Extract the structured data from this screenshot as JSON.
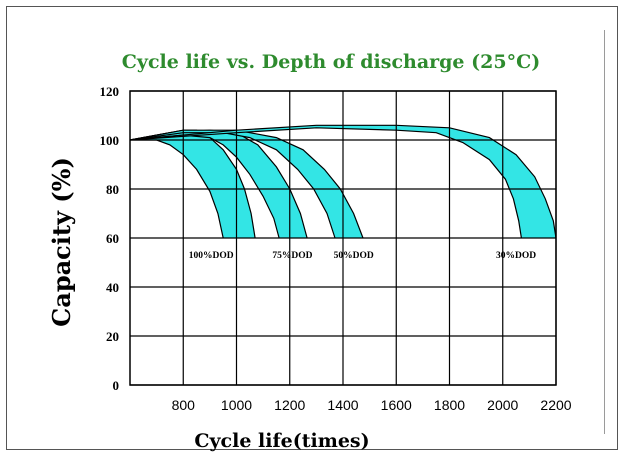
{
  "chart_data": {
    "type": "line",
    "title": "Cycle life vs. Depth of discharge (25°C)",
    "xlabel": "Cycle life(times)",
    "ylabel": "Capacity (%)",
    "xlim": [
      600,
      2200
    ],
    "ylim": [
      0,
      120
    ],
    "x_ticks": [
      800,
      1000,
      1200,
      1400,
      1600,
      1800,
      2000,
      2200
    ],
    "y_ticks": [
      0,
      20,
      40,
      60,
      80,
      100,
      120
    ],
    "grid": true,
    "band_color": "#33e5e5",
    "title_color": "#2e8b2e",
    "series": [
      {
        "name": "100%DOD",
        "upper": [
          [
            600,
            100
          ],
          [
            700,
            102
          ],
          [
            800,
            104
          ],
          [
            850,
            104
          ],
          [
            900,
            101
          ],
          [
            950,
            96
          ],
          [
            1000,
            88
          ],
          [
            1030,
            80
          ],
          [
            1055,
            70
          ],
          [
            1070,
            60
          ]
        ],
        "lower": [
          [
            600,
            100
          ],
          [
            700,
            100
          ],
          [
            750,
            98
          ],
          [
            800,
            94
          ],
          [
            850,
            88
          ],
          [
            900,
            79
          ],
          [
            930,
            70
          ],
          [
            950,
            60
          ]
        ]
      },
      {
        "name": "75%DOD",
        "upper": [
          [
            600,
            100
          ],
          [
            750,
            103
          ],
          [
            900,
            104
          ],
          [
            1000,
            103
          ],
          [
            1080,
            98
          ],
          [
            1150,
            89
          ],
          [
            1200,
            80
          ],
          [
            1240,
            70
          ],
          [
            1265,
            60
          ]
        ],
        "lower": [
          [
            600,
            100
          ],
          [
            800,
            102
          ],
          [
            900,
            101
          ],
          [
            950,
            98
          ],
          [
            1000,
            93
          ],
          [
            1050,
            86
          ],
          [
            1100,
            77
          ],
          [
            1140,
            68
          ],
          [
            1160,
            60
          ]
        ]
      },
      {
        "name": "50%DOD",
        "upper": [
          [
            600,
            100
          ],
          [
            800,
            104
          ],
          [
            1000,
            104
          ],
          [
            1150,
            101
          ],
          [
            1250,
            96
          ],
          [
            1330,
            88
          ],
          [
            1390,
            80
          ],
          [
            1440,
            70
          ],
          [
            1475,
            60
          ]
        ],
        "lower": [
          [
            600,
            100
          ],
          [
            800,
            103
          ],
          [
            950,
            103
          ],
          [
            1050,
            101
          ],
          [
            1150,
            96
          ],
          [
            1230,
            88
          ],
          [
            1290,
            80
          ],
          [
            1340,
            70
          ],
          [
            1370,
            60
          ]
        ]
      },
      {
        "name": "30%DOD",
        "upper": [
          [
            600,
            100
          ],
          [
            1000,
            104
          ],
          [
            1300,
            106
          ],
          [
            1600,
            106
          ],
          [
            1800,
            105
          ],
          [
            1950,
            101
          ],
          [
            2050,
            94
          ],
          [
            2120,
            85
          ],
          [
            2160,
            76
          ],
          [
            2190,
            67
          ],
          [
            2200,
            60
          ]
        ],
        "lower": [
          [
            600,
            100
          ],
          [
            1000,
            103
          ],
          [
            1300,
            105
          ],
          [
            1600,
            104
          ],
          [
            1750,
            103
          ],
          [
            1850,
            99
          ],
          [
            1950,
            92
          ],
          [
            2010,
            84
          ],
          [
            2040,
            76
          ],
          [
            2060,
            67
          ],
          [
            2070,
            60
          ]
        ]
      }
    ]
  }
}
